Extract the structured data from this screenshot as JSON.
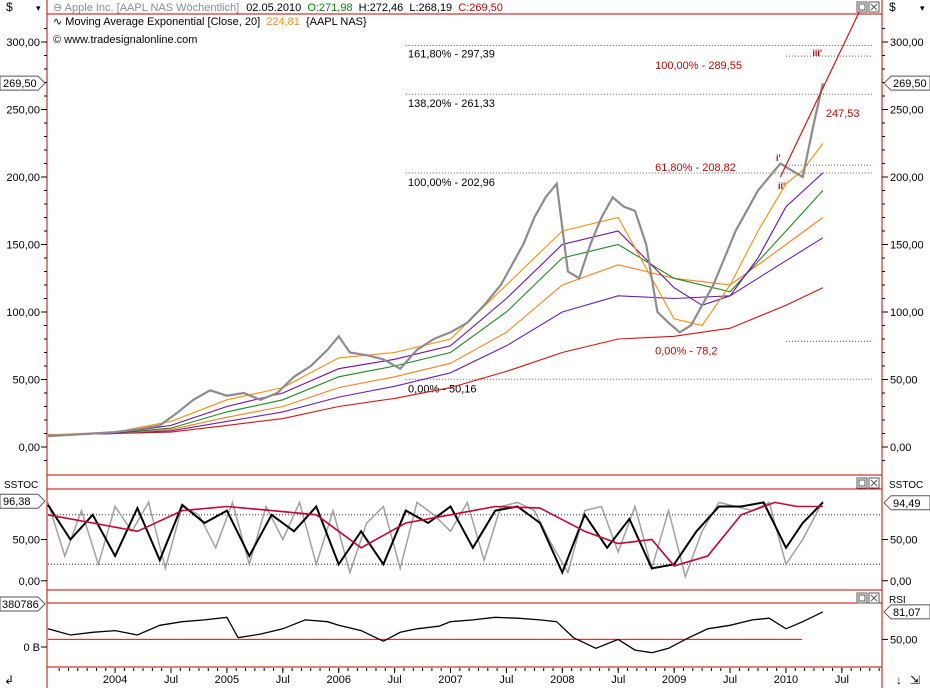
{
  "header": {
    "currency_symbol": "$",
    "instrument": "Apple Inc. [AAPL NAS  Wöchentlich]",
    "date": "02.05.2010",
    "open": "O:271,98",
    "high": "H:272,46",
    "low": "L:268,19",
    "close": "C:269,50",
    "indicator_name": "Moving Average Exponential [Close, 20]",
    "indicator_value": "224,81",
    "indicator_symbol": "{AAPL NAS}",
    "website": "www.tradesignalonline.com"
  },
  "colors": {
    "frame": "#cc0000",
    "price": "#8c8c8c",
    "ema20": "#ff8c00",
    "ema40": "#6a0dad",
    "ema60": "#1a8a1a",
    "ema90": "#ff7f1a",
    "ema120": "#6a1fb0",
    "ema200": "#dd1111",
    "fib_text": "#000000",
    "wave_text": "#cc0000",
    "stoch_fast": "#a0a0a0",
    "stoch_k": "#000000",
    "stoch_slow": "#cc0033",
    "rsi": "#000000"
  },
  "chart_data": [
    {
      "type": "line",
      "panel": "main",
      "title": "Apple Inc. [AAPL NAS Wöchentlich]",
      "ylim": [
        -20,
        320
      ],
      "yticks": [
        "0,00",
        "50,00",
        "100,00",
        "150,00",
        "200,00",
        "250,00",
        "300,00"
      ],
      "ytick_values": [
        0,
        50,
        100,
        150,
        200,
        250,
        300
      ],
      "x_range": [
        2003.4,
        2010.85
      ],
      "xtick_labels": [
        "2004",
        "Jul",
        "2005",
        "Jul",
        "2006",
        "Jul",
        "2007",
        "Jul",
        "2008",
        "Jul",
        "2009",
        "Jul",
        "2010",
        "Jul"
      ],
      "xtick_values": [
        2004.0,
        2004.5,
        2005.0,
        2005.5,
        2006.0,
        2006.5,
        2007.0,
        2007.5,
        2008.0,
        2008.5,
        2009.0,
        2009.5,
        2010.0,
        2010.5
      ],
      "last_price_label": "269,50",
      "last_price": 269.5,
      "series": [
        {
          "name": "Close",
          "x": [
            2003.4,
            2003.6,
            2003.8,
            2004.0,
            2004.2,
            2004.4,
            2004.55,
            2004.7,
            2004.85,
            2005.0,
            2005.15,
            2005.3,
            2005.45,
            2005.6,
            2005.75,
            2005.9,
            2006.0,
            2006.1,
            2006.25,
            2006.4,
            2006.55,
            2006.7,
            2006.85,
            2007.0,
            2007.15,
            2007.3,
            2007.45,
            2007.55,
            2007.65,
            2007.75,
            2007.85,
            2007.95,
            2008.05,
            2008.15,
            2008.25,
            2008.35,
            2008.45,
            2008.55,
            2008.65,
            2008.75,
            2008.85,
            2008.95,
            2009.05,
            2009.15,
            2009.25,
            2009.35,
            2009.45,
            2009.55,
            2009.65,
            2009.75,
            2009.85,
            2009.95,
            2010.05,
            2010.15,
            2010.25,
            2010.33
          ],
          "values": [
            8,
            9,
            10,
            11,
            13,
            16,
            25,
            35,
            42,
            38,
            40,
            35,
            40,
            52,
            60,
            72,
            82,
            70,
            68,
            65,
            58,
            72,
            80,
            85,
            92,
            105,
            120,
            135,
            150,
            170,
            185,
            195,
            130,
            125,
            150,
            170,
            185,
            178,
            175,
            150,
            100,
            92,
            85,
            90,
            105,
            120,
            140,
            160,
            175,
            190,
            200,
            210,
            205,
            200,
            240,
            269.5
          ]
        },
        {
          "name": "EMA 20",
          "x": [
            2003.4,
            2004.0,
            2004.5,
            2005.0,
            2005.5,
            2006.0,
            2006.5,
            2007.0,
            2007.5,
            2008.0,
            2008.5,
            2009.0,
            2009.25,
            2009.5,
            2009.75,
            2010.0,
            2010.15,
            2010.33
          ],
          "values": [
            9,
            11,
            19,
            35,
            44,
            66,
            70,
            80,
            120,
            160,
            170,
            95,
            90,
            120,
            160,
            195,
            205,
            224.81
          ]
        },
        {
          "name": "EMA 40",
          "x": [
            2003.4,
            2004.0,
            2004.5,
            2005.0,
            2005.5,
            2006.0,
            2006.5,
            2007.0,
            2007.5,
            2008.0,
            2008.5,
            2009.0,
            2009.25,
            2009.5,
            2009.75,
            2010.0,
            2010.33
          ],
          "values": [
            9,
            10,
            16,
            30,
            40,
            58,
            65,
            75,
            110,
            150,
            160,
            118,
            105,
            112,
            140,
            178,
            203
          ]
        },
        {
          "name": "EMA 60",
          "x": [
            2003.4,
            2004.0,
            2004.5,
            2005.0,
            2005.5,
            2006.0,
            2006.5,
            2007.0,
            2007.5,
            2008.0,
            2008.5,
            2009.0,
            2009.5,
            2010.0,
            2010.33
          ],
          "values": [
            9,
            10,
            14,
            26,
            35,
            52,
            60,
            70,
            100,
            140,
            150,
            125,
            115,
            160,
            190
          ]
        },
        {
          "name": "EMA 90",
          "x": [
            2003.4,
            2004.0,
            2004.5,
            2005.0,
            2005.5,
            2006.0,
            2006.5,
            2007.0,
            2007.5,
            2008.0,
            2008.5,
            2009.0,
            2009.5,
            2010.0,
            2010.33
          ],
          "values": [
            9,
            10,
            13,
            22,
            30,
            44,
            52,
            62,
            85,
            120,
            135,
            125,
            120,
            150,
            170
          ]
        },
        {
          "name": "EMA 120",
          "x": [
            2003.4,
            2004.0,
            2004.5,
            2005.0,
            2005.5,
            2006.0,
            2006.5,
            2007.0,
            2007.5,
            2008.0,
            2008.5,
            2009.0,
            2009.5,
            2010.0,
            2010.33
          ],
          "values": [
            9,
            10,
            12,
            19,
            26,
            37,
            45,
            55,
            75,
            100,
            112,
            110,
            112,
            138,
            155
          ]
        },
        {
          "name": "EMA 200",
          "x": [
            2003.4,
            2004.0,
            2004.5,
            2005.0,
            2005.5,
            2006.0,
            2006.5,
            2007.0,
            2007.5,
            2008.0,
            2008.5,
            2009.0,
            2009.5,
            2010.0,
            2010.33
          ],
          "values": [
            9,
            10,
            11,
            16,
            21,
            30,
            36,
            44,
            56,
            70,
            80,
            82,
            88,
            105,
            118
          ]
        }
      ],
      "trendline": {
        "x": [
          2009.95,
          2010.7
        ],
        "values": [
          200,
          330
        ]
      },
      "fibonacci": [
        {
          "label": "161,80% - 297,39",
          "value": 297.39,
          "x_start": 2006.6,
          "x_end": 2010.78
        },
        {
          "label": "138,20% - 261,33",
          "value": 261.33,
          "x_start": 2006.6,
          "x_end": 2010.78
        },
        {
          "label": "100,00% - 202,96",
          "value": 202.96,
          "x_start": 2006.6,
          "x_end": 2010.78
        },
        {
          "label": "0,00% - 50,16",
          "value": 50.16,
          "x_start": 2006.6,
          "x_end": 2010.78
        },
        {
          "label": "100,00% - 289,55",
          "value": 289.55,
          "x_start": 2010.0,
          "x_end": 2010.78
        },
        {
          "label": "61,80% - 208,82",
          "value": 208.82,
          "x_start": 2010.0,
          "x_end": 2010.78
        },
        {
          "label": "0,00% - 78,2",
          "value": 78.2,
          "x_start": 2010.0,
          "x_end": 2010.78
        }
      ],
      "annotations": [
        {
          "text": "247,53",
          "x": 2010.33,
          "value": 247.53
        },
        {
          "text": "iii'",
          "x": 2010.2,
          "value": 289.55
        },
        {
          "text": "i'",
          "x": 2010.0,
          "value": 208.82
        },
        {
          "text": "ii'",
          "x": 2010.0,
          "value": 197
        }
      ]
    },
    {
      "type": "line",
      "panel": "stochastic",
      "title": "SSTOC",
      "ylim": [
        -10,
        110
      ],
      "yticks": [
        "0,00",
        "50,00"
      ],
      "ytick_values": [
        0,
        50
      ],
      "ref_lines": [
        20,
        80
      ],
      "left_value_label": "96,38",
      "right_value_label": "94,49",
      "series": [
        {
          "name": "Fast",
          "x": [
            2003.4,
            2003.55,
            2003.7,
            2003.85,
            2004.0,
            2004.15,
            2004.3,
            2004.45,
            2004.6,
            2004.75,
            2004.9,
            2005.05,
            2005.2,
            2005.35,
            2005.5,
            2005.65,
            2005.8,
            2005.95,
            2006.1,
            2006.25,
            2006.4,
            2006.55,
            2006.7,
            2006.85,
            2007.0,
            2007.15,
            2007.3,
            2007.45,
            2007.6,
            2007.75,
            2007.9,
            2008.05,
            2008.2,
            2008.35,
            2008.5,
            2008.65,
            2008.8,
            2008.95,
            2009.1,
            2009.25,
            2009.4,
            2009.55,
            2009.7,
            2009.85,
            2010.0,
            2010.15,
            2010.33
          ],
          "values": [
            95,
            30,
            85,
            20,
            90,
            60,
            95,
            15,
            90,
            80,
            40,
            95,
            20,
            90,
            50,
            95,
            20,
            85,
            10,
            70,
            90,
            15,
            95,
            80,
            60,
            95,
            25,
            90,
            95,
            85,
            45,
            10,
            85,
            90,
            35,
            90,
            15,
            85,
            5,
            60,
            95,
            90,
            85,
            95,
            20,
            50,
            96.38
          ]
        },
        {
          "name": "%K",
          "x": [
            2003.4,
            2003.6,
            2003.8,
            2004.0,
            2004.2,
            2004.4,
            2004.6,
            2004.8,
            2005.0,
            2005.2,
            2005.4,
            2005.6,
            2005.8,
            2006.0,
            2006.2,
            2006.4,
            2006.6,
            2006.8,
            2007.0,
            2007.2,
            2007.4,
            2007.6,
            2007.8,
            2008.0,
            2008.2,
            2008.4,
            2008.6,
            2008.8,
            2009.0,
            2009.2,
            2009.4,
            2009.6,
            2009.8,
            2010.0,
            2010.15,
            2010.33
          ],
          "values": [
            92,
            50,
            80,
            30,
            88,
            25,
            92,
            70,
            85,
            30,
            80,
            60,
            90,
            20,
            60,
            20,
            85,
            70,
            90,
            40,
            85,
            90,
            70,
            10,
            80,
            40,
            75,
            15,
            20,
            60,
            90,
            90,
            95,
            40,
            70,
            95
          ]
        },
        {
          "name": "%D slow",
          "x": [
            2003.4,
            2003.8,
            2004.2,
            2004.6,
            2005.0,
            2005.4,
            2005.8,
            2006.2,
            2006.6,
            2007.0,
            2007.4,
            2007.8,
            2008.2,
            2008.5,
            2008.8,
            2009.0,
            2009.3,
            2009.6,
            2009.9,
            2010.1,
            2010.33
          ],
          "values": [
            80,
            70,
            60,
            85,
            90,
            85,
            80,
            40,
            70,
            80,
            90,
            88,
            60,
            45,
            50,
            18,
            30,
            80,
            95,
            90,
            90
          ]
        }
      ]
    },
    {
      "type": "line",
      "panel": "rsi",
      "title": "RSI",
      "ylim": [
        20,
        90
      ],
      "yticks": [
        "50,00"
      ],
      "ytick_values": [
        50
      ],
      "ref_lines": [
        50
      ],
      "left_value_label": "380786",
      "left_tick_label": "0 B",
      "right_value_label": "81,07",
      "series": [
        {
          "name": "RSI",
          "x": [
            2003.4,
            2003.6,
            2003.8,
            2004.0,
            2004.2,
            2004.4,
            2004.6,
            2004.8,
            2005.0,
            2005.1,
            2005.3,
            2005.5,
            2005.7,
            2005.9,
            2006.0,
            2006.2,
            2006.4,
            2006.55,
            2006.7,
            2006.9,
            2007.0,
            2007.2,
            2007.4,
            2007.6,
            2007.8,
            2007.95,
            2008.1,
            2008.3,
            2008.5,
            2008.65,
            2008.8,
            2008.95,
            2009.1,
            2009.3,
            2009.5,
            2009.7,
            2009.85,
            2010.0,
            2010.15,
            2010.33
          ],
          "values": [
            62,
            55,
            58,
            60,
            55,
            66,
            70,
            72,
            75,
            52,
            56,
            62,
            72,
            70,
            66,
            60,
            48,
            58,
            62,
            65,
            70,
            72,
            75,
            74,
            72,
            70,
            52,
            40,
            50,
            38,
            35,
            40,
            50,
            62,
            66,
            72,
            74,
            62,
            70,
            81.07
          ]
        }
      ]
    }
  ]
}
